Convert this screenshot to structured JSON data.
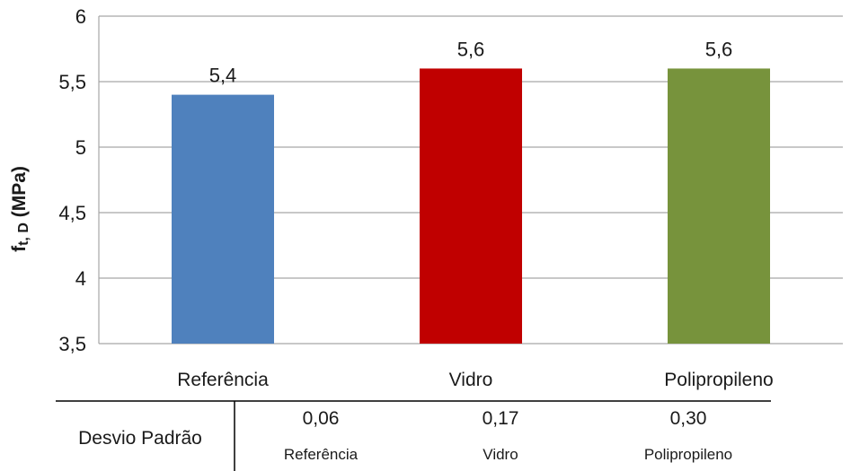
{
  "chart_data": {
    "type": "bar",
    "categories": [
      "Referência",
      "Vidro",
      "Polipropileno"
    ],
    "values": [
      5.4,
      5.6,
      5.6
    ],
    "data_labels": [
      "5,4",
      "5,6",
      "5,6"
    ],
    "colors": [
      "#4f81bd",
      "#c00000",
      "#77933c"
    ],
    "ylabel": {
      "main": "f",
      "sub": "t, D",
      "unit": " (MPa)"
    },
    "ylim": [
      3.5,
      6
    ],
    "yticks": [
      3.5,
      4,
      4.5,
      5,
      5.5,
      6
    ],
    "ytick_labels": [
      "3,5",
      "4",
      "4,5",
      "5",
      "5,5",
      "6"
    ],
    "grid": true
  },
  "stats_table": {
    "row_label": "Desvio Padrão",
    "values": [
      "0,06",
      "0,17",
      "0,30"
    ],
    "names": [
      "Referência",
      "Vidro",
      "Polipropileno"
    ]
  }
}
